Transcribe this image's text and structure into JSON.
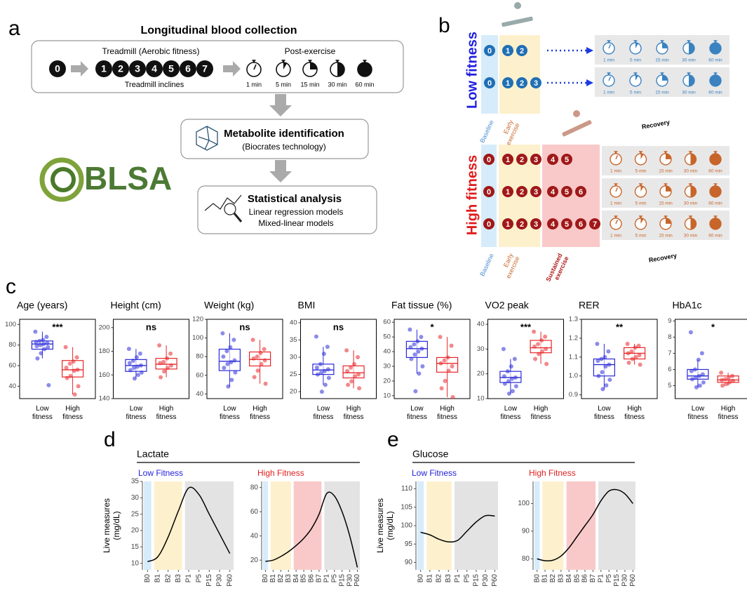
{
  "panel_a": {
    "letter": "a",
    "title": "Longitudinal blood collection",
    "treadmill_label": "Treadmill (Aerobic fitness)",
    "post_label": "Post-exercise",
    "baseline_stage": "0",
    "inclines": [
      "1",
      "2",
      "3",
      "4",
      "5",
      "6",
      "7"
    ],
    "inclines_label": "Treadmill inclines",
    "post_times": [
      "1 min",
      "5 min",
      "15 min",
      "30 min",
      "60 min"
    ],
    "step2_title": "Metabolite identification",
    "step2_sub": "(Biocrates technology)",
    "step3_title": "Statistical analysis",
    "step3_lines": [
      "Linear regression models",
      "Mixed-linear models"
    ],
    "logo": "BLSA"
  },
  "panel_b": {
    "letter": "b",
    "low_label": "Low fitness",
    "high_label": "High fitness",
    "low_rows": [
      {
        "baseline": "0",
        "early": [
          "1",
          "2"
        ]
      },
      {
        "baseline": "0",
        "early": [
          "1",
          "2",
          "3"
        ]
      }
    ],
    "high_rows": [
      {
        "baseline": "0",
        "early": [
          "1",
          "2",
          "3"
        ],
        "sustained": [
          "4",
          "5"
        ]
      },
      {
        "baseline": "0",
        "early": [
          "1",
          "2",
          "3"
        ],
        "sustained": [
          "4",
          "5",
          "6"
        ]
      },
      {
        "baseline": "0",
        "early": [
          "1",
          "2",
          "3"
        ],
        "sustained": [
          "4",
          "5",
          "6",
          "7"
        ]
      }
    ],
    "recovery_times": [
      "1 min",
      "5 min",
      "15 min",
      "30 min",
      "60 min"
    ],
    "low_phases": [
      "Baseline",
      "Early exercise",
      "Recovery"
    ],
    "high_phases": [
      "Baseline",
      "Early exercise",
      "Sustained exercise",
      "Recovery"
    ]
  },
  "panel_c": {
    "letter": "c"
  },
  "panel_d": {
    "letter": "d",
    "title": "Lactate"
  },
  "panel_e": {
    "letter": "e",
    "title": "Glucose"
  },
  "chart_data": [
    {
      "type": "box",
      "title": "Age (years)",
      "significance": "***",
      "categories": [
        "Low fitness",
        "High fitness"
      ],
      "colors": [
        "#2b2bd9",
        "#e8262a"
      ],
      "ylim": [
        28,
        105
      ],
      "yticks": [
        40,
        60,
        80,
        100
      ],
      "boxes": [
        {
          "min": 67,
          "q1": 76,
          "median": 81,
          "q3": 84,
          "max": 93
        },
        {
          "min": 32,
          "q1": 49,
          "median": 56,
          "q3": 65,
          "max": 78
        }
      ],
      "points": [
        [
          93,
          88,
          85,
          84,
          83,
          82,
          81,
          80,
          79,
          78,
          76,
          72,
          67,
          41
        ],
        [
          78,
          68,
          64,
          62,
          58,
          56,
          55,
          50,
          48,
          40,
          32
        ]
      ]
    },
    {
      "type": "box",
      "title": "Height (cm)",
      "significance": "ns",
      "categories": [
        "Low fitness",
        "High fitness"
      ],
      "colors": [
        "#2b2bd9",
        "#e8262a"
      ],
      "ylim": [
        140,
        207
      ],
      "yticks": [
        140,
        160,
        180,
        200
      ],
      "boxes": [
        {
          "min": 157,
          "q1": 163,
          "median": 168,
          "q3": 173,
          "max": 182
        },
        {
          "min": 158,
          "q1": 165,
          "median": 169,
          "q3": 174,
          "max": 185
        }
      ],
      "points": [
        [
          182,
          178,
          175,
          172,
          170,
          168,
          167,
          166,
          164,
          162,
          160,
          157
        ],
        [
          185,
          178,
          174,
          171,
          170,
          168,
          166,
          163,
          158
        ]
      ]
    },
    {
      "type": "box",
      "title": "Weight (kg)",
      "significance": "ns",
      "categories": [
        "Low fitness",
        "High fitness"
      ],
      "colors": [
        "#2b2bd9",
        "#e8262a"
      ],
      "ylim": [
        35,
        120
      ],
      "yticks": [
        40,
        60,
        80,
        100,
        120
      ],
      "boxes": [
        {
          "min": 48,
          "q1": 65,
          "median": 75,
          "q3": 88,
          "max": 105
        },
        {
          "min": 51,
          "q1": 70,
          "median": 77,
          "q3": 85,
          "max": 98
        }
      ],
      "points": [
        [
          105,
          98,
          90,
          86,
          80,
          76,
          74,
          72,
          68,
          63,
          55,
          48
        ],
        [
          98,
          88,
          84,
          80,
          78,
          76,
          72,
          65,
          58,
          51
        ]
      ]
    },
    {
      "type": "box",
      "title": "BMI",
      "significance": "ns",
      "categories": [
        "Low fitness",
        "High fitness"
      ],
      "colors": [
        "#2b2bd9",
        "#e8262a"
      ],
      "ylim": [
        18,
        41
      ],
      "yticks": [
        20,
        25,
        30,
        35,
        40
      ],
      "boxes": [
        {
          "min": 22,
          "q1": 25,
          "median": 26.3,
          "q3": 28,
          "max": 33
        },
        {
          "min": 21,
          "q1": 24,
          "median": 25.5,
          "q3": 27.5,
          "max": 32
        }
      ],
      "points": [
        [
          36,
          33,
          31,
          28,
          27,
          26.5,
          26,
          25.5,
          25,
          24,
          22,
          20
        ],
        [
          32,
          30,
          28,
          27,
          26,
          25,
          24.5,
          23,
          22,
          21
        ]
      ]
    },
    {
      "type": "box",
      "title": "Fat tissue (%)",
      "significance": "*",
      "categories": [
        "Low fitness",
        "High fitness"
      ],
      "colors": [
        "#2b2bd9",
        "#e8262a"
      ],
      "ylim": [
        8,
        62
      ],
      "yticks": [
        10,
        20,
        30,
        40,
        50,
        60
      ],
      "boxes": [
        {
          "min": 25,
          "q1": 36,
          "median": 42,
          "q3": 47,
          "max": 55
        },
        {
          "min": 9,
          "q1": 26,
          "median": 32,
          "q3": 36,
          "max": 50
        }
      ],
      "points": [
        [
          55,
          50,
          47,
          45,
          43,
          42,
          40,
          38,
          35,
          30,
          25,
          13
        ],
        [
          50,
          44,
          36,
          34,
          32,
          30,
          27,
          20,
          15,
          9
        ]
      ]
    },
    {
      "type": "box",
      "title": "VO2 peak",
      "significance": "***",
      "categories": [
        "Low fitness",
        "High fitness"
      ],
      "colors": [
        "#2b2bd9",
        "#e8262a"
      ],
      "ylim": [
        10,
        42
      ],
      "yticks": [
        10,
        20,
        30,
        40
      ],
      "boxes": [
        {
          "min": 12,
          "q1": 16.5,
          "median": 18.5,
          "q3": 21,
          "max": 26
        },
        {
          "min": 24,
          "q1": 28.5,
          "median": 30.5,
          "q3": 33.5,
          "max": 37
        }
      ],
      "points": [
        [
          30,
          26,
          23,
          21,
          19,
          18.5,
          18,
          17,
          16,
          15,
          13,
          12
        ],
        [
          37,
          35,
          33.5,
          32,
          31,
          30,
          29,
          28,
          26,
          24
        ]
      ]
    },
    {
      "type": "box",
      "title": "RER",
      "significance": "**",
      "categories": [
        "Low fitness",
        "High fitness"
      ],
      "colors": [
        "#2b2bd9",
        "#e8262a"
      ],
      "ylim": [
        0.88,
        1.3
      ],
      "yticks": [
        0.9,
        {
          "value": 1,
          "label": "1.0"
        },
        1.1,
        1.2,
        1.3
      ],
      "boxes": [
        {
          "min": 0.93,
          "q1": 1.0,
          "median": 1.06,
          "q3": 1.09,
          "max": 1.17
        },
        {
          "min": 1.06,
          "q1": 1.09,
          "median": 1.12,
          "q3": 1.15,
          "max": 1.17
        }
      ],
      "points": [
        [
          1.17,
          1.13,
          1.1,
          1.09,
          1.08,
          1.06,
          1.05,
          1.02,
          1.0,
          0.98,
          0.95,
          0.93
        ],
        [
          1.17,
          1.16,
          1.15,
          1.13,
          1.12,
          1.11,
          1.1,
          1.09,
          1.07,
          1.06
        ]
      ]
    },
    {
      "type": "box",
      "title": "HbA1c",
      "significance": "*",
      "categories": [
        "Low fitness",
        "High fitness"
      ],
      "colors": [
        "#2b2bd9",
        "#e8262a"
      ],
      "ylim": [
        4.2,
        9.1
      ],
      "yticks": [
        4,
        5,
        6,
        7,
        8,
        9
      ],
      "boxes": [
        {
          "min": 4.9,
          "q1": 5.4,
          "median": 5.6,
          "q3": 6.0,
          "max": 6.6
        },
        {
          "min": 5.0,
          "q1": 5.2,
          "median": 5.35,
          "q3": 5.6,
          "max": 5.8
        }
      ],
      "points": [
        [
          8.3,
          7.0,
          6.6,
          6.0,
          5.9,
          5.7,
          5.6,
          5.5,
          5.4,
          5.2,
          5.0,
          4.9
        ],
        [
          5.8,
          5.6,
          5.5,
          5.4,
          5.35,
          5.3,
          5.2,
          5.1,
          5.0
        ]
      ]
    },
    {
      "type": "line",
      "title": "Low Fitness",
      "title_color": "#2222dd",
      "y_label": [
        "Live measures",
        "(mg/dL)"
      ],
      "color": "#000000",
      "categories": [
        "B0",
        "B1",
        "B2",
        "B3",
        "P1",
        "P5",
        "P15",
        "P30",
        "P60"
      ],
      "values": [
        10.5,
        12,
        18,
        26,
        33,
        31,
        25,
        19,
        13
      ],
      "ylim": [
        8,
        35
      ],
      "yticks": [
        10,
        15,
        20,
        25,
        30,
        35
      ]
    },
    {
      "type": "line",
      "title": "High Fitness",
      "title_color": "#e02020",
      "color": "#000000",
      "categories": [
        "B0",
        "B1",
        "B2",
        "B3",
        "B4",
        "B5",
        "B6",
        "B7",
        "P1",
        "P5",
        "P15",
        "P30",
        "P60"
      ],
      "values": [
        19,
        20,
        23,
        27,
        32,
        38,
        46,
        58,
        75,
        73,
        60,
        40,
        14
      ],
      "ylim": [
        12,
        85
      ],
      "yticks": [
        20,
        40,
        60,
        80
      ]
    },
    {
      "type": "line",
      "title": "Low Fitness",
      "title_color": "#2222dd",
      "y_label": [
        "Live measures",
        "(mg/dL)"
      ],
      "color": "#000000",
      "categories": [
        "B0",
        "B1",
        "B2",
        "B3",
        "P1",
        "P5",
        "P15",
        "P30",
        "P60"
      ],
      "values": [
        98.2,
        97.5,
        96.3,
        95.6,
        96,
        98.5,
        101,
        102.7,
        102.6
      ],
      "ylim": [
        88,
        112
      ],
      "yticks": [
        90,
        95,
        100,
        105,
        110
      ]
    },
    {
      "type": "line",
      "title": "High Fitness",
      "title_color": "#e02020",
      "color": "#000000",
      "categories": [
        "B0",
        "B1",
        "B2",
        "B3",
        "B4",
        "B5",
        "B6",
        "B7",
        "P1",
        "P5",
        "P15",
        "P30",
        "P60"
      ],
      "values": [
        80,
        79.3,
        79.5,
        81,
        84,
        88,
        92,
        96,
        101,
        104.5,
        105,
        103.5,
        100
      ],
      "ylim": [
        76,
        108
      ],
      "yticks": [
        80,
        90,
        100
      ]
    }
  ]
}
